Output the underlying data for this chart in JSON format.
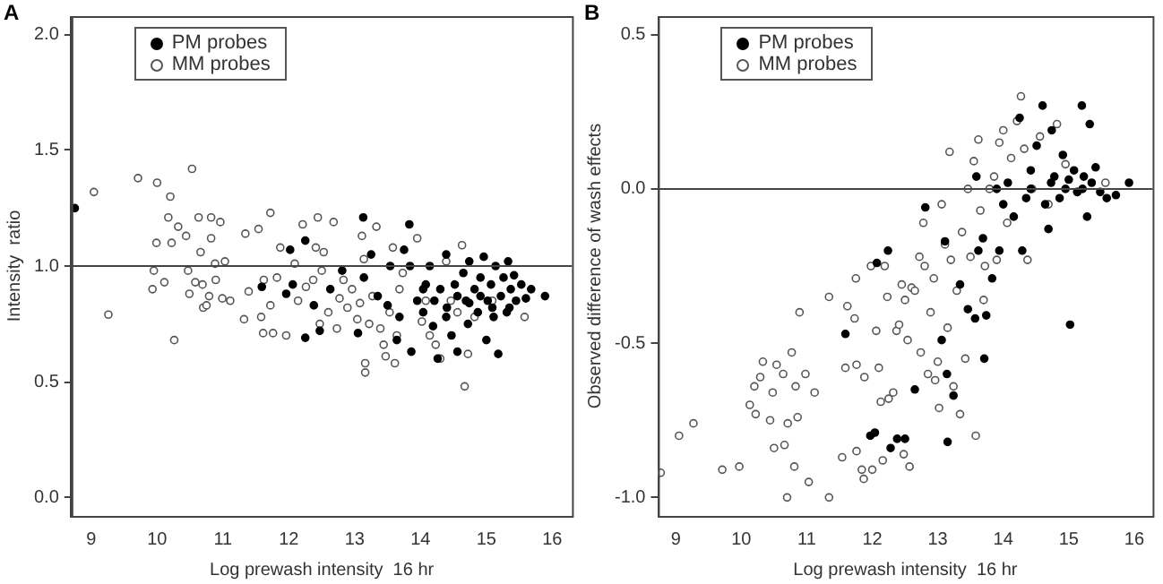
{
  "chart_data": [
    {
      "type": "scatter",
      "title": "A",
      "xlabel": "Log prewash intensity  16 hr",
      "ylabel": "Intensity  ratio",
      "xlim": [
        8.7,
        16.3
      ],
      "ylim": [
        -0.08,
        2.08
      ],
      "xticks": [
        9,
        10,
        11,
        12,
        13,
        14,
        15,
        16
      ],
      "yticks": [
        {
          "value": 0,
          "label": "0.0"
        },
        {
          "value": 0.5,
          "label": "0.5"
        },
        {
          "value": 1,
          "label": "1.0"
        },
        {
          "value": 1.5,
          "label": "1.5"
        },
        {
          "value": 2,
          "label": "2.0"
        }
      ],
      "grid": false,
      "legend": "top left",
      "marker": "circle",
      "ref_lines": [
        {
          "axis": "y",
          "value": 1
        }
      ],
      "series": [
        {
          "name": "PM probes",
          "color": "#000000",
          "x": [
            8.75,
            11.59,
            11.96,
            12.02,
            12.06,
            12.25,
            12.25,
            12.38,
            12.47,
            12.63,
            12.81,
            13.05,
            13.13,
            13.14,
            13.25,
            13.35,
            13.54,
            13.64,
            13.75,
            13.83,
            13.84,
            13.86,
            13.95,
            14.04,
            14.08,
            14.14,
            14.19,
            14.26,
            14.3,
            14.39,
            14.4,
            14.47,
            14.52,
            14.56,
            14.65,
            14.69,
            14.72,
            14.74,
            14.82,
            14.87,
            14.91,
            14.96,
            15.0,
            15.02,
            15.07,
            15.11,
            15.14,
            15.18,
            15.22,
            15.26,
            15.31,
            15.33,
            15.37,
            15.42,
            15.45,
            15.53,
            15.6,
            15.68,
            15.89,
            14.04,
            14.56,
            14.91,
            15.09,
            15.35,
            14.74,
            14.39,
            14.21,
            13.68,
            13.5
          ],
          "values": [
            1.25,
            0.91,
            0.88,
            1.07,
            0.92,
            1.11,
            0.69,
            0.83,
            0.72,
            0.9,
            0.98,
            0.71,
            1.21,
            0.95,
            1.05,
            0.87,
            1.0,
            0.68,
            1.07,
            1.18,
            1.0,
            0.63,
            0.85,
            0.8,
            0.92,
            1.0,
            0.74,
            0.6,
            0.9,
            1.05,
            0.82,
            0.7,
            0.92,
            0.63,
            0.97,
            0.85,
            0.75,
            1.02,
            0.9,
            0.8,
            0.95,
            1.04,
            0.68,
            0.85,
            0.92,
            0.78,
            1.0,
            0.62,
            0.87,
            0.95,
            0.8,
            1.02,
            0.9,
            0.96,
            0.85,
            0.92,
            0.86,
            0.9,
            0.87,
            0.9,
            0.87,
            0.87,
            0.82,
            0.82,
            0.84,
            0.78,
            0.85,
            0.78,
            0.83
          ]
        },
        {
          "name": "MM probes",
          "color": "#555555",
          "x": [
            9.04,
            9.26,
            9.71,
            10.0,
            9.99,
            9.95,
            9.93,
            10.11,
            10.17,
            10.2,
            10.22,
            10.26,
            10.32,
            10.44,
            10.47,
            10.49,
            10.53,
            10.58,
            10.63,
            10.66,
            10.69,
            10.7,
            10.75,
            10.79,
            10.82,
            10.82,
            10.88,
            10.89,
            10.96,
            10.99,
            11.03,
            11.11,
            11.32,
            11.34,
            11.39,
            11.54,
            11.58,
            11.61,
            11.62,
            11.72,
            11.72,
            11.76,
            11.82,
            11.87,
            11.96,
            12.09,
            12.14,
            12.21,
            12.26,
            12.37,
            12.41,
            12.44,
            12.47,
            12.5,
            12.53,
            12.6,
            12.68,
            12.73,
            12.77,
            12.83,
            12.89,
            12.96,
            13.04,
            13.08,
            13.11,
            13.14,
            13.16,
            13.16,
            13.22,
            13.27,
            13.33,
            13.39,
            13.44,
            13.47,
            13.53,
            13.58,
            13.61,
            13.64,
            13.68,
            13.73,
            13.95,
            14.02,
            14.08,
            14.14,
            14.23,
            14.3,
            14.39,
            14.46,
            14.56,
            14.63,
            14.67,
            14.72,
            14.82,
            15.09,
            15.58
          ],
          "values": [
            1.32,
            0.79,
            1.38,
            1.36,
            1.1,
            0.98,
            0.9,
            0.93,
            1.21,
            1.3,
            1.1,
            0.68,
            1.17,
            1.13,
            0.98,
            0.88,
            1.42,
            0.93,
            1.21,
            1.06,
            0.92,
            0.82,
            0.83,
            0.87,
            1.21,
            1.12,
            1.01,
            0.94,
            1.19,
            0.86,
            1.02,
            0.85,
            0.77,
            1.14,
            0.89,
            1.16,
            0.78,
            0.71,
            0.94,
            0.83,
            1.23,
            0.71,
            0.95,
            1.08,
            0.7,
            1.01,
            0.85,
            1.18,
            0.91,
            0.94,
            1.08,
            1.21,
            0.75,
            0.98,
            1.06,
            0.8,
            1.19,
            0.73,
            0.86,
            0.94,
            0.82,
            0.9,
            0.77,
            0.84,
            1.13,
            1.03,
            0.58,
            0.54,
            0.75,
            0.87,
            1.17,
            0.73,
            0.66,
            0.61,
            0.8,
            1.08,
            0.58,
            0.7,
            0.9,
            0.97,
            1.12,
            0.76,
            0.85,
            0.7,
            0.66,
            0.6,
            1.02,
            0.85,
            0.8,
            1.09,
            0.48,
            0.62,
            0.78,
            0.85,
            0.78
          ]
        }
      ]
    },
    {
      "type": "scatter",
      "title": "B",
      "xlabel": "Log prewash intensity  16 hr",
      "ylabel": "Observed difference of wash effects",
      "xlim": [
        8.73,
        16.28
      ],
      "ylim": [
        -1.06,
        0.56
      ],
      "xticks": [
        9,
        10,
        11,
        12,
        13,
        14,
        15,
        16
      ],
      "yticks": [
        {
          "value": -1,
          "label": "-1.0"
        },
        {
          "value": -0.5,
          "label": "-0.5"
        },
        {
          "value": 0,
          "label": "0.0"
        },
        {
          "value": 0.5,
          "label": "0.5"
        }
      ],
      "grid": false,
      "legend": "top left",
      "marker": "circle",
      "ref_lines": [
        {
          "axis": "y",
          "value": 0
        }
      ],
      "series": [
        {
          "name": "PM probes",
          "color": "#000000",
          "x": [
            11.59,
            11.97,
            12.04,
            12.07,
            12.24,
            12.28,
            12.38,
            12.5,
            12.65,
            12.81,
            13.06,
            13.11,
            13.14,
            13.15,
            13.24,
            13.34,
            13.46,
            13.57,
            13.59,
            13.62,
            13.69,
            13.71,
            13.74,
            13.83,
            13.9,
            13.94,
            14.0,
            14.07,
            14.16,
            14.25,
            14.29,
            14.35,
            14.42,
            14.51,
            14.6,
            14.64,
            14.69,
            14.74,
            14.78,
            14.86,
            14.91,
            14.95,
            15.02,
            15.08,
            15.13,
            15.2,
            15.23,
            15.28,
            15.32,
            15.35,
            15.41,
            15.48,
            15.58,
            15.72,
            15.92,
            14.42,
            14.73,
            15.0,
            15.21
          ],
          "values": [
            -0.47,
            -0.8,
            -0.79,
            -0.24,
            -0.2,
            -0.84,
            -0.81,
            -0.81,
            -0.65,
            -0.06,
            -0.49,
            -0.17,
            -0.6,
            -0.82,
            -0.67,
            -0.31,
            -0.39,
            -0.42,
            0.04,
            -0.2,
            -0.16,
            -0.55,
            -0.41,
            -0.29,
            0.0,
            -0.2,
            -0.05,
            0.02,
            -0.09,
            0.23,
            -0.2,
            -0.03,
            0.06,
            0.14,
            0.27,
            -0.05,
            -0.13,
            0.19,
            0.04,
            -0.03,
            0.11,
            0.0,
            -0.44,
            0.06,
            -0.01,
            0.27,
            0.04,
            -0.09,
            0.21,
            0.02,
            0.07,
            -0.01,
            -0.03,
            -0.02,
            0.02,
            0.0,
            0.02,
            0.03,
            0.0
          ]
        },
        {
          "name": "MM probes",
          "color": "#555555",
          "x": [
            8.77,
            9.05,
            9.27,
            9.71,
            9.97,
            10.13,
            10.2,
            10.22,
            10.29,
            10.33,
            10.44,
            10.48,
            10.5,
            10.54,
            10.64,
            10.66,
            10.7,
            10.71,
            10.77,
            10.81,
            10.83,
            10.86,
            10.89,
            10.98,
            11.03,
            11.12,
            11.34,
            11.34,
            11.54,
            11.59,
            11.62,
            11.73,
            11.76,
            11.76,
            11.84,
            11.87,
            11.88,
            11.75,
            11.98,
            12.0,
            12.06,
            12.1,
            12.13,
            12.16,
            12.19,
            12.23,
            12.25,
            12.32,
            12.37,
            12.41,
            12.45,
            12.48,
            12.5,
            12.54,
            12.57,
            12.6,
            12.65,
            12.72,
            12.74,
            12.78,
            12.8,
            12.85,
            12.89,
            12.94,
            12.96,
            13.0,
            13.02,
            13.06,
            13.11,
            13.15,
            13.18,
            13.2,
            13.24,
            13.29,
            13.34,
            13.37,
            13.42,
            13.46,
            13.5,
            13.55,
            13.58,
            13.62,
            13.65,
            13.7,
            13.72,
            13.79,
            13.86,
            13.9,
            13.94,
            14.0,
            14.06,
            14.12,
            14.21,
            14.27,
            14.32,
            14.37,
            14.44,
            14.56,
            14.69,
            14.82,
            14.95,
            15.13,
            15.56
          ],
          "values": [
            -0.92,
            -0.8,
            -0.76,
            -0.91,
            -0.9,
            -0.7,
            -0.64,
            -0.73,
            -0.61,
            -0.56,
            -0.75,
            -0.66,
            -0.84,
            -0.57,
            -0.6,
            -0.83,
            -1.0,
            -0.76,
            -0.53,
            -0.9,
            -0.64,
            -0.74,
            -0.4,
            -0.6,
            -0.95,
            -0.66,
            -1.0,
            -0.35,
            -0.87,
            -0.58,
            -0.38,
            -0.42,
            -0.57,
            -0.85,
            -0.91,
            -0.94,
            -0.61,
            -0.29,
            -0.25,
            -0.91,
            -0.46,
            -0.58,
            -0.69,
            -0.88,
            -0.25,
            -0.35,
            -0.68,
            -0.66,
            -0.46,
            -0.44,
            -0.31,
            -0.86,
            -0.36,
            -0.49,
            -0.9,
            -0.32,
            -0.33,
            -0.22,
            -0.53,
            -0.11,
            -0.25,
            -0.6,
            -0.4,
            -0.29,
            -0.62,
            -0.56,
            -0.71,
            -0.05,
            -0.18,
            -0.45,
            0.12,
            -0.23,
            -0.64,
            -0.33,
            -0.73,
            -0.14,
            -0.55,
            0.0,
            -0.22,
            0.09,
            -0.8,
            0.16,
            -0.07,
            -0.36,
            -0.25,
            0.0,
            0.04,
            -0.23,
            0.15,
            0.19,
            -0.11,
            0.1,
            0.22,
            0.3,
            0.13,
            -0.23,
            0.0,
            0.17,
            -0.05,
            0.21,
            0.08,
            -0.01,
            0.02
          ]
        }
      ]
    }
  ]
}
